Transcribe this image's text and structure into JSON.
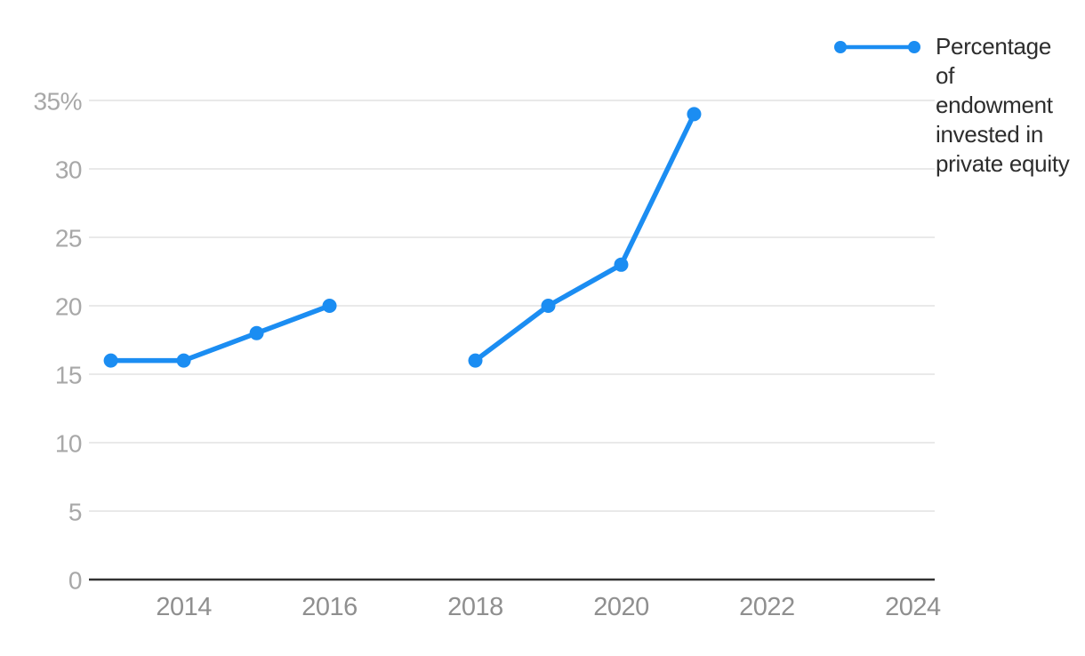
{
  "chart_data": {
    "type": "line",
    "title": "",
    "x": [
      2013,
      2014,
      2015,
      2016,
      2017,
      2018,
      2019,
      2020,
      2021
    ],
    "series": [
      {
        "name": "Percentage of endowment invested in private equity",
        "values": [
          16,
          16,
          18,
          20,
          null,
          16,
          20,
          23,
          34
        ]
      }
    ],
    "x_ticks": [
      2014,
      2016,
      2018,
      2020,
      2022,
      2024
    ],
    "x_tick_labels": [
      "2014",
      "2016",
      "2018",
      "2020",
      "2022",
      "2024"
    ],
    "x_range": [
      2012.7,
      2024.3
    ],
    "y_ticks": [
      0,
      5,
      10,
      15,
      20,
      25,
      30,
      35
    ],
    "y_tick_labels": [
      "0",
      "5",
      "10",
      "15",
      "20",
      "25",
      "30",
      "35%"
    ],
    "ylim": [
      0,
      35
    ],
    "grid": "horizontal",
    "legend_position": "top-right"
  },
  "legend": {
    "label": "Percentage of endowment invested in private equity"
  },
  "colors": {
    "line": "#1b8df2",
    "grid": "#e9e9e9",
    "axis": "#333333",
    "y_tick_label": "#a8a8a8",
    "x_tick_label": "#8f8f8f",
    "legend_text": "#2d2d2d",
    "background": "#ffffff"
  }
}
